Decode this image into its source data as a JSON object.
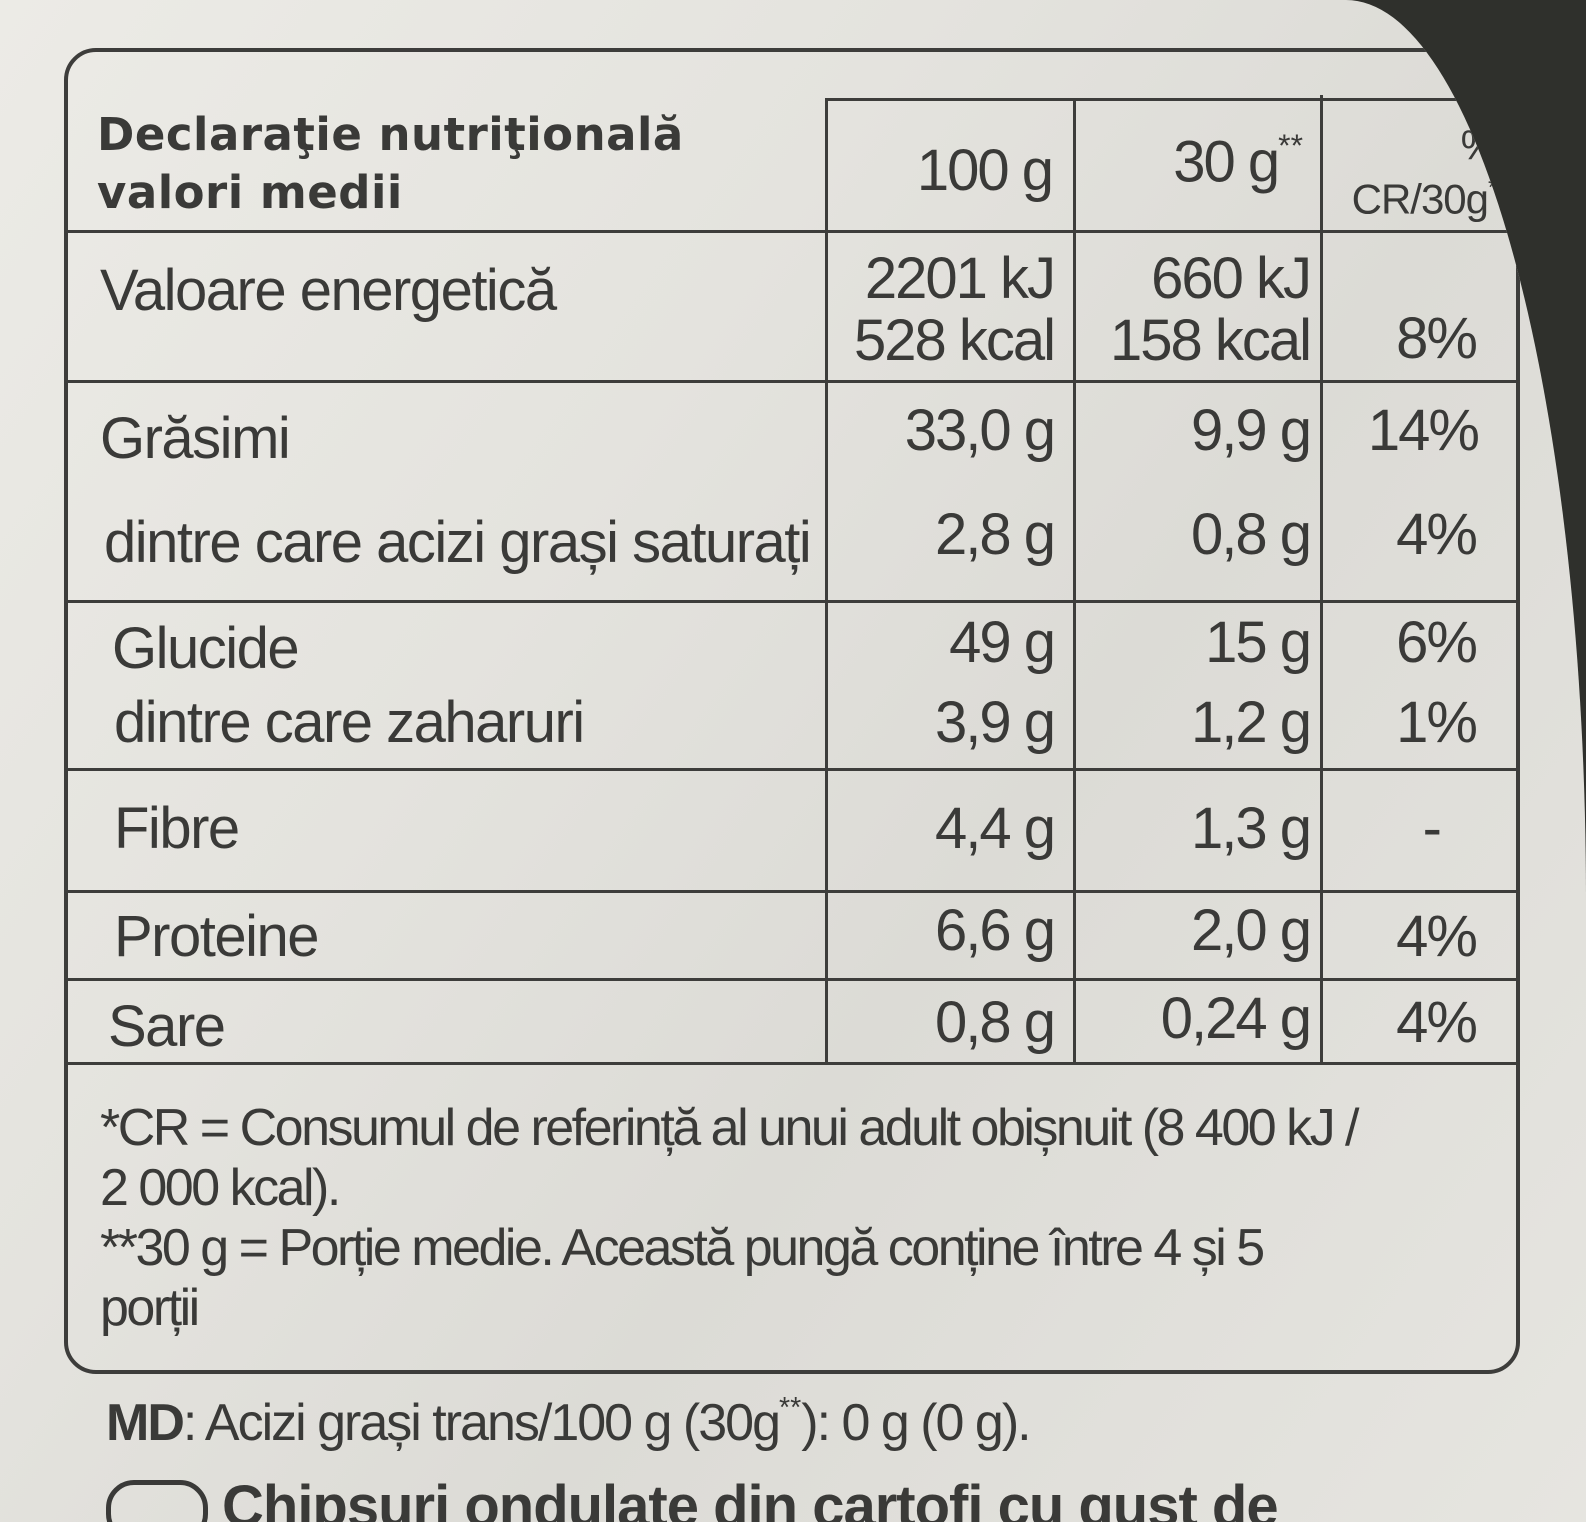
{
  "table": {
    "title_line1": "Declaraţie nutriţională",
    "title_line2": "valori medii",
    "col_100g": "100 g",
    "col_30g": "30 g",
    "col_30g_mark": "**",
    "col_cr_line1": "%",
    "col_cr_line1_mark": "*",
    "col_cr_line2": "CR/30g",
    "col_cr_line2_mark": "**",
    "rows": [
      {
        "label": "Valoare energetică",
        "v100a": "2201 kJ",
        "v100b": "528 kcal",
        "v30a": "660 kJ",
        "v30b": "158 kcal",
        "cr": "8%"
      },
      {
        "label": "Grăsimi",
        "v100": "33,0 g",
        "v30": "9,9 g",
        "cr": "14%"
      },
      {
        "label": "dintre care acizi grași saturați",
        "v100": "2,8 g",
        "v30": "0,8 g",
        "cr": "4%"
      },
      {
        "label": "Glucide",
        "v100": "49 g",
        "v30": "15 g",
        "cr": "6%"
      },
      {
        "label": "dintre care zaharuri",
        "v100": "3,9 g",
        "v30": "1,2 g",
        "cr": "1%"
      },
      {
        "label": "Fibre",
        "v100": "4,4 g",
        "v30": "1,3 g",
        "cr": "-"
      },
      {
        "label": "Proteine",
        "v100": "6,6 g",
        "v30": "2,0 g",
        "cr": "4%"
      },
      {
        "label": "Sare",
        "v100": "0,8 g",
        "v30": "0,24 g",
        "cr": "4%"
      }
    ],
    "footnote_line1": "*CR = Consumul de referință al unui adult obișnuit (8 400 kJ /",
    "footnote_line2": "2 000 kcal).",
    "footnote_line3": "**30 g =  Porție medie. Această pungă conține între 4 și 5",
    "footnote_line4": "porții"
  },
  "md_line": {
    "prefix": "MD",
    "text": ": Acizi grași trans/100 g (30g",
    "mark": "**",
    "suffix": "): 0 g (0 g)."
  },
  "cut_line": "Chipsuri ondulate din cartofi cu gust de"
}
